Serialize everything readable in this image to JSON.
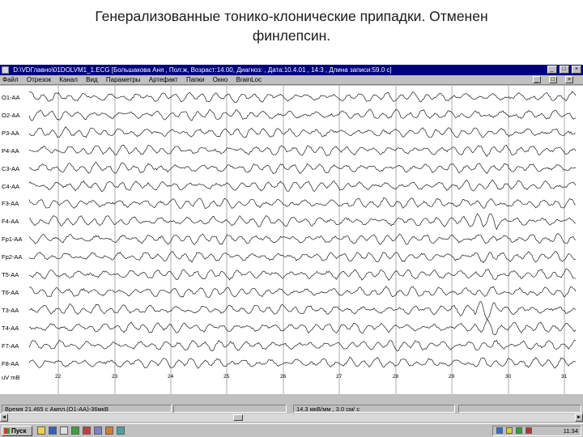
{
  "slide": {
    "title_line1": "Генерализованные тонико-клонические припадки. Отменен",
    "title_line2": "финлепсин."
  },
  "window": {
    "title": "D:\\VDГлавно\\01DOLVM1_1.ECG [Большакова Аня , Пол:ж, Возраст:14.00, Диагноз: , Дата:10.4.01 , 14:3 , Длина записи:59.0 с]",
    "menu": [
      "Файл",
      "Отрезок",
      "Канал",
      "Вид",
      "Параметры",
      "Артефакт",
      "Папки",
      "Окно",
      "BrainLoc"
    ],
    "controls": {
      "minimize": "_",
      "maximize": "□",
      "close": "×"
    }
  },
  "eeg": {
    "channels": [
      "O1-AA",
      "O2-AA",
      "P3-AA",
      "P4-AA",
      "C3-AA",
      "C4-AA",
      "F3-AA",
      "F4-AA",
      "Fp1-AA",
      "Fp2-AA",
      "T5-AA",
      "T6-AA",
      "T3-AA",
      "T4-AA",
      "F7-AA",
      "F8-AA"
    ],
    "amplitude_unit": "uV mB",
    "time_ticks": [
      "22",
      "23",
      "24",
      "25",
      "26",
      "27",
      "28",
      "29",
      "30",
      "31"
    ]
  },
  "status": {
    "cursor": "Время 21.465 с Ампл.(O1-AA)-36мкВ",
    "scale": "14.3 мкВ/мм , 3.0 см/ с"
  },
  "taskbar": {
    "start_label": "Пуск",
    "clock": "11:34"
  },
  "colors": {
    "trace": "#1a1a1a",
    "grid": "#9a9a9a",
    "titlebar": "#000080"
  }
}
